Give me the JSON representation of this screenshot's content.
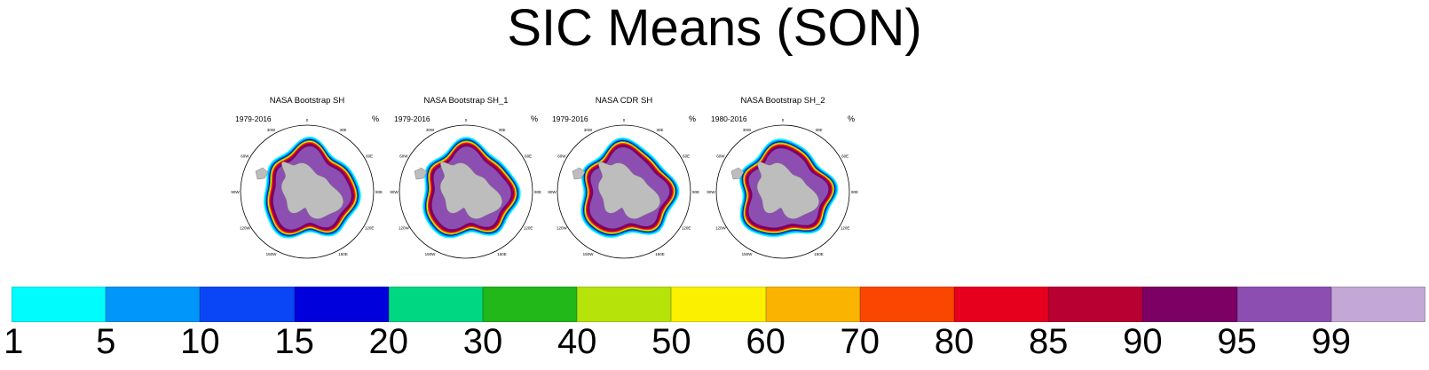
{
  "title": "SIC Means (SON)",
  "unit": "%",
  "lon_labels": [
    "0",
    "30E",
    "60E",
    "90E",
    "120E",
    "150E",
    "180",
    "150W",
    "120W",
    "90W",
    "60W",
    "30W"
  ],
  "panels": [
    {
      "name": "NASA Bootstrap SH",
      "years": "1979-2016"
    },
    {
      "name": "NASA Bootstrap SH_1",
      "years": "1979-2016"
    },
    {
      "name": "NASA CDR SH",
      "years": "1979-2016"
    },
    {
      "name": "NASA Bootstrap SH_2",
      "years": "1980-2016"
    }
  ],
  "colorbar": {
    "labels": [
      "1",
      "5",
      "10",
      "15",
      "20",
      "30",
      "40",
      "50",
      "60",
      "70",
      "80",
      "85",
      "90",
      "95",
      "99"
    ],
    "colors": [
      "#00fcfc",
      "#0096fa",
      "#0a46f5",
      "#0000dc",
      "#00d782",
      "#22b81a",
      "#b6e40a",
      "#faf000",
      "#fab400",
      "#fa4600",
      "#e6001e",
      "#b90032",
      "#7d0064",
      "#8c4fb1",
      "#c3a7d6"
    ]
  },
  "colors": {
    "land": "#bdbdbd",
    "ocean": "#ffffff"
  }
}
